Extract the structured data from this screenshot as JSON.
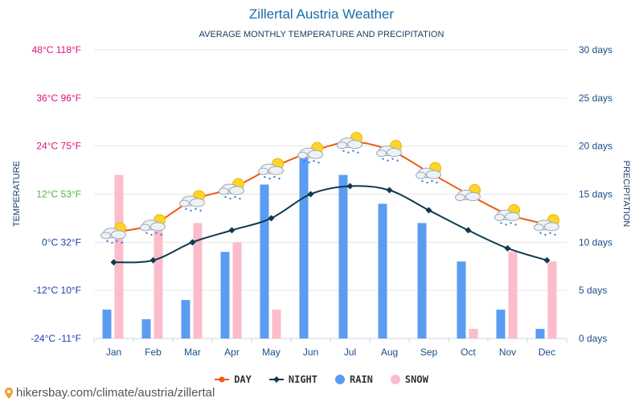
{
  "colors": {
    "day": "#ef5a0f",
    "night": "#0f3a4d",
    "rain": "#5a9cf2",
    "snow": "#fbbccb",
    "temp_label_warm": "#e0117a",
    "temp_label_mid": "#52b33a",
    "temp_label_cold": "#1a3fb0",
    "right_axis": "#1a4d88",
    "title": "#1a6fa8"
  },
  "footer": {
    "text": "hikersbay.com/climate/austria/zillertal",
    "icon": "location-pin-icon"
  },
  "chart_data": {
    "type": "bar+line",
    "title": "Zillertal Austria Weather",
    "subtitle": "AVERAGE MONTHLY TEMPERATURE AND PRECIPITATION",
    "ylabel_left": "TEMPERATURE",
    "ylabel_right": "PRECIPITATION",
    "categories": [
      "Jan",
      "Feb",
      "Mar",
      "Apr",
      "May",
      "Jun",
      "Jul",
      "Aug",
      "Sep",
      "Oct",
      "Nov",
      "Dec"
    ],
    "left_axis": {
      "range_c": [
        -24,
        48
      ],
      "ticks": [
        {
          "value": 48,
          "label": "48°C 118°F",
          "tone": "warm"
        },
        {
          "value": 36,
          "label": "36°C 96°F",
          "tone": "warm"
        },
        {
          "value": 24,
          "label": "24°C 75°F",
          "tone": "warm"
        },
        {
          "value": 12,
          "label": "12°C 53°F",
          "tone": "mid"
        },
        {
          "value": 0,
          "label": "0°C 32°F",
          "tone": "cold"
        },
        {
          "value": -12,
          "label": "-12°C 10°F",
          "tone": "cold"
        },
        {
          "value": -24,
          "label": "-24°C -11°F",
          "tone": "cold"
        }
      ]
    },
    "right_axis": {
      "range_days": [
        0,
        30
      ],
      "ticks": [
        {
          "value": 30,
          "label": "30 days"
        },
        {
          "value": 25,
          "label": "25 days"
        },
        {
          "value": 20,
          "label": "20 days"
        },
        {
          "value": 15,
          "label": "15 days"
        },
        {
          "value": 10,
          "label": "10 days"
        },
        {
          "value": 5,
          "label": "5 days"
        },
        {
          "value": 0,
          "label": "0 days"
        }
      ]
    },
    "series": [
      {
        "name": "DAY",
        "kind": "line",
        "axis": "left",
        "values": [
          2.5,
          4.5,
          10.5,
          13.5,
          18.5,
          22.5,
          25,
          23,
          17.5,
          12,
          7,
          4.5
        ]
      },
      {
        "name": "NIGHT",
        "kind": "line",
        "axis": "left",
        "values": [
          -5,
          -4.5,
          0,
          3,
          6,
          12,
          14,
          13,
          8,
          3,
          -1.5,
          -4.5
        ]
      },
      {
        "name": "RAIN",
        "kind": "bar",
        "axis": "right",
        "values": [
          3,
          2,
          4,
          9,
          16,
          19,
          17,
          14,
          12,
          8,
          3,
          1
        ]
      },
      {
        "name": "SNOW",
        "kind": "bar",
        "axis": "right",
        "values": [
          17,
          12,
          12,
          10,
          3,
          0,
          0,
          0,
          0,
          1,
          9,
          8
        ]
      }
    ],
    "weather_icons": [
      "partly-cloudy-rain-icon",
      "partly-cloudy-rain-icon",
      "partly-cloudy-rain-icon",
      "partly-cloudy-rain-icon",
      "partly-cloudy-rain-icon",
      "partly-cloudy-rain-icon",
      "partly-cloudy-rain-icon",
      "partly-cloudy-rain-icon",
      "partly-cloudy-rain-icon",
      "partly-cloudy-icon",
      "partly-cloudy-rain-icon",
      "partly-cloudy-rain-icon"
    ],
    "legend": [
      "DAY",
      "NIGHT",
      "RAIN",
      "SNOW"
    ],
    "legend_position": "bottom-center",
    "grid": true
  }
}
